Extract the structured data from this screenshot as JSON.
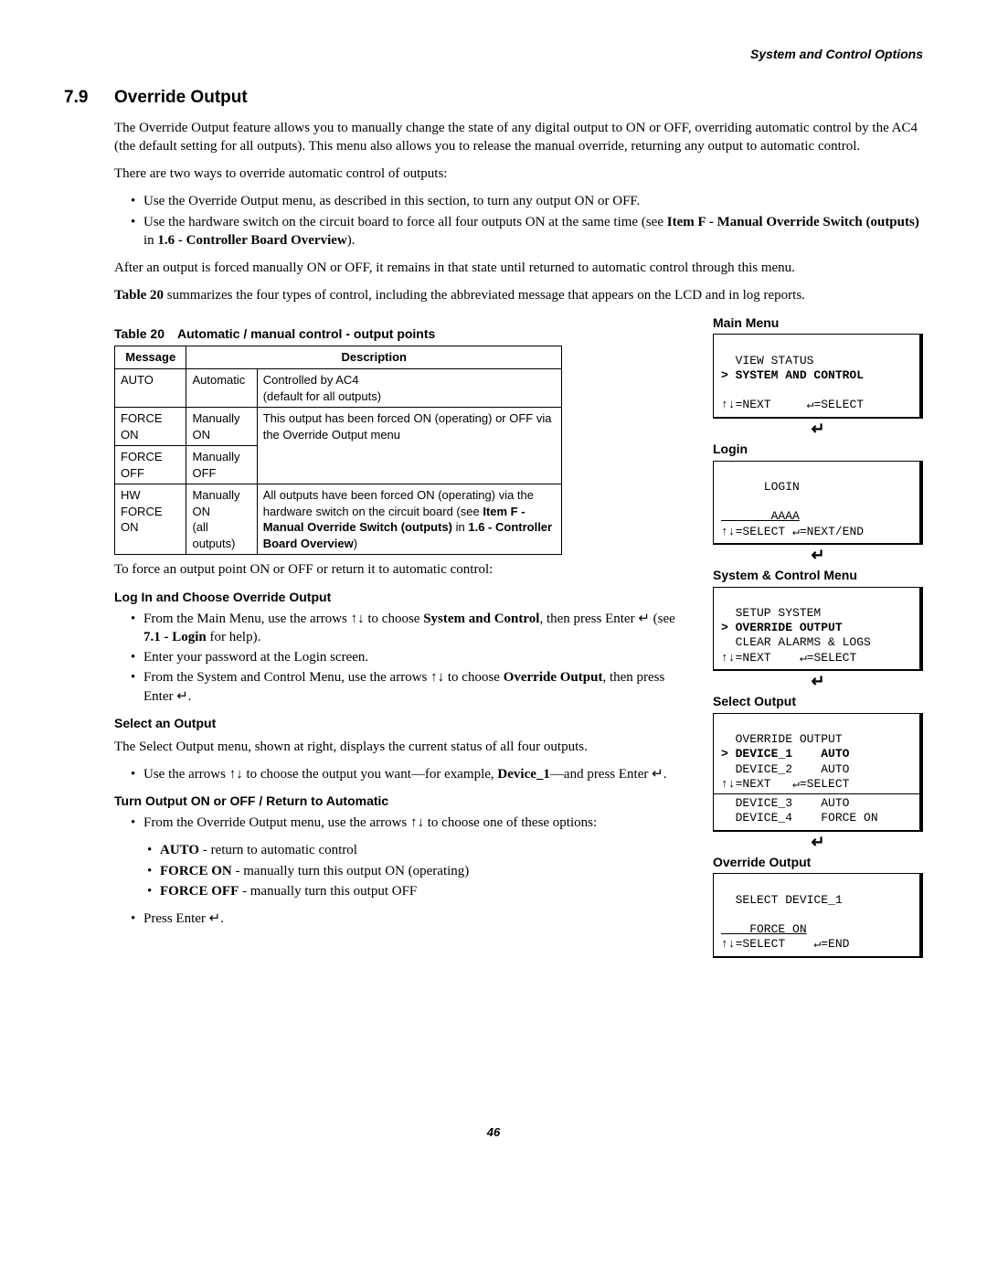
{
  "header": {
    "section_label": "System and Control Options"
  },
  "section": {
    "number": "7.9",
    "title": "Override Output"
  },
  "p1": "The Override Output feature allows you to manually change the state of any digital output to ON or OFF, overriding automatic control by the AC4 (the default setting for all outputs). This menu also allows you to release the manual override, returning any output to automatic control.",
  "p2": "There are two ways to override automatic control of outputs:",
  "intro_bullets": {
    "b1": "Use the Override Output menu, as described in this section, to turn any output ON or OFF.",
    "b2_a": "Use the hardware switch on the circuit board to force all four outputs ON at the same time (see ",
    "b2_b_bold": "Item F - Manual Override Switch (outputs)",
    "b2_c": " in ",
    "b2_d_bold": "1.6 - Controller Board Overview",
    "b2_e": ")."
  },
  "p3": "After an output is forced manually ON or OFF, it remains in that state until returned to automatic control through this menu.",
  "p4_a_bold": "Table 20",
  "p4_b": " summarizes the four types of control, including the abbreviated message that appears on the LCD and in log reports.",
  "table": {
    "caption": "Table 20 Automatic / manual control - output points",
    "head_msg": "Message",
    "head_desc": "Description",
    "rows": [
      {
        "msg": "AUTO",
        "d1": "Automatic",
        "d2": "Controlled by AC4\n(default for all outputs)"
      },
      {
        "msg": "FORCE ON",
        "d1": "Manually ON",
        "d2": "This output has been forced ON (operating) or OFF via the Override Output menu"
      },
      {
        "msg": "FORCE OFF",
        "d1": "Manually OFF",
        "d2": ""
      },
      {
        "msg": "HW FORCE ON",
        "d1": "Manually ON\n(all outputs)",
        "d2_a": "All outputs have been forced ON (operating) via the hardware switch on the circuit board (see ",
        "d2_b_bold": "Item F - Manual Override Switch (outputs)",
        "d2_c": " in ",
        "d2_d_bold": "1.6 - Controller Board Overview",
        "d2_e": ")"
      }
    ]
  },
  "p5": "To force an output point ON or OFF or return it to automatic control:",
  "login_h": "Log In and Choose Override Output",
  "login_bullets": {
    "b1_a": "From the Main Menu, use the arrows ↑↓ to choose ",
    "b1_b_bold": "System and Control",
    "b1_c": ", then press Enter ↵ (see ",
    "b1_d_bold": "7.1 - Login",
    "b1_e": " for help).",
    "b2": "Enter your password at the Login screen.",
    "b3_a": "From the System and Control Menu, use the arrows ↑↓ to choose ",
    "b3_b_bold": "Override Output",
    "b3_c": ", then press Enter ↵."
  },
  "select_h": "Select an Output",
  "p6": "The Select Output menu, shown at right, displays the current status of all four outputs.",
  "select_bullets": {
    "b1_a": "Use the arrows ↑↓ to choose the output you want—for example, ",
    "b1_b_bold": "Device_1",
    "b1_c": "—and press Enter ↵."
  },
  "turn_h": "Turn Output ON or OFF / Return to Automatic",
  "turn_bullets": {
    "b1": "From the Override Output menu, use the arrows ↑↓ to choose one of these options:",
    "s1_b": "AUTO",
    "s1_t": " - return to automatic control",
    "s2_b": "FORCE ON",
    "s2_t": " - manually turn this output ON (operating)",
    "s3_b": "FORCE OFF",
    "s3_t": " - manually turn this output OFF",
    "b2": "Press Enter ↵."
  },
  "lcds": {
    "main_label": "Main Menu",
    "main_l1": "  VIEW STATUS",
    "main_l2": "> SYSTEM AND CONTROL",
    "main_l3": " ",
    "main_l4": "↑↓=NEXT     ↵=SELECT",
    "login_label": "Login",
    "login_l1": "      LOGIN",
    "login_l2": " ",
    "login_l3_u": "       AAAA",
    "login_l4": "↑↓=SELECT ↵=NEXT/END",
    "sys_label": "System & Control Menu",
    "sys_l1": "  SETUP SYSTEM",
    "sys_l2": "> OVERRIDE OUTPUT",
    "sys_l3": "  CLEAR ALARMS & LOGS",
    "sys_l4": "↑↓=NEXT    ↵=SELECT",
    "sel_label": "Select Output",
    "sel_l1": "  OVERRIDE OUTPUT",
    "sel_l2": "> DEVICE_1    AUTO",
    "sel_l3": "  DEVICE_2    AUTO",
    "sel_l4": "↑↓=NEXT   ↵=SELECT",
    "sel_l5": "  DEVICE_3    AUTO",
    "sel_l6": "  DEVICE_4    FORCE ON",
    "ovr_label": "Override Output",
    "ovr_l1": "  SELECT DEVICE_1",
    "ovr_l2": " ",
    "ovr_l3_u": "    FORCE ON",
    "ovr_l4": "↑↓=SELECT    ↵=END"
  },
  "enter_sym": "↵",
  "page_number": "46"
}
